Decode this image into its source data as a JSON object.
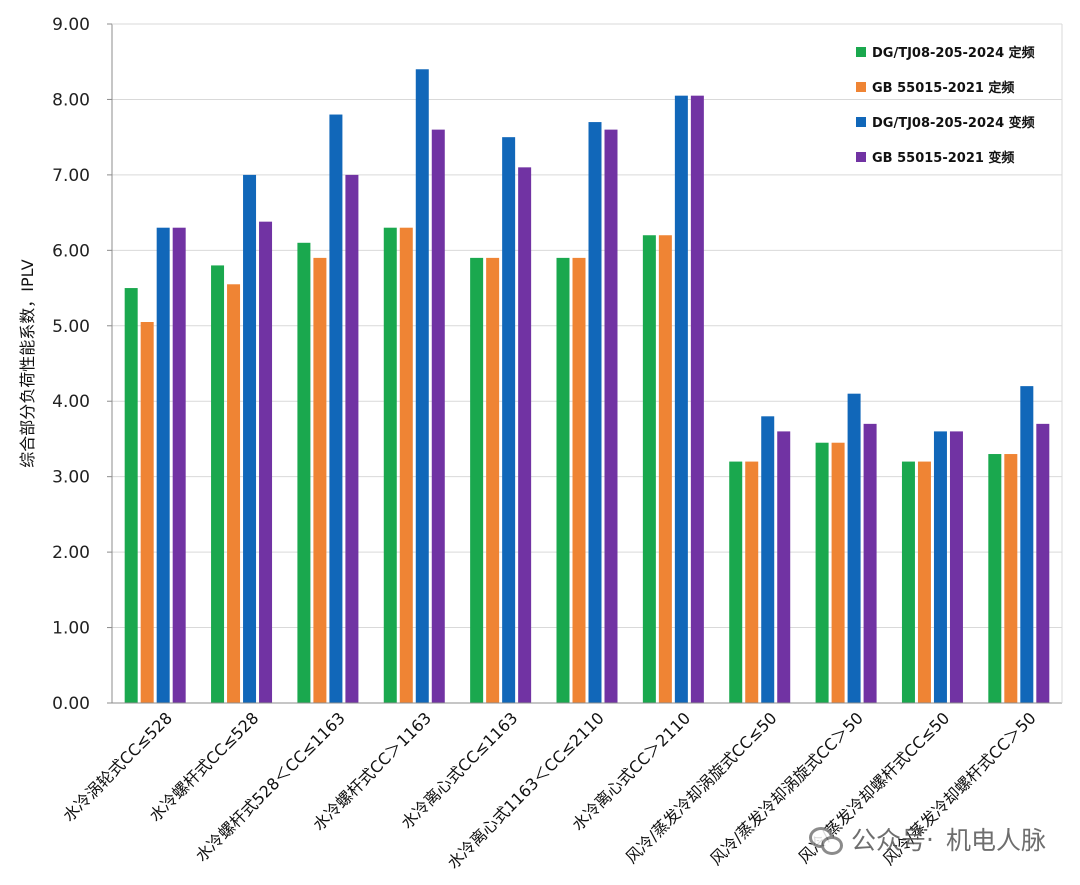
{
  "chart_data": {
    "type": "bar",
    "title": "",
    "xlabel": "",
    "ylabel": "综合部分负荷性能系数，IPLV",
    "ylim": [
      0,
      9
    ],
    "yticks": [
      "0.00",
      "1.00",
      "2.00",
      "3.00",
      "4.00",
      "5.00",
      "6.00",
      "7.00",
      "8.00",
      "9.00"
    ],
    "grid": true,
    "legend_position": "top-right",
    "categories": [
      "水冷涡轮式CC≤528",
      "水冷螺杆式CC≤528",
      "水冷螺杆式528＜CC≤1163",
      "水冷螺杆式CC＞1163",
      "水冷离心式CC≤1163",
      "水冷离心式1163＜CC≤2110",
      "水冷离心式CC＞2110",
      "风冷/蒸发冷却涡旋式CC≤50",
      "风冷/蒸发冷却涡旋式CC＞50",
      "风冷/蒸发冷却螺杆式CC≤50",
      "风冷/蒸发冷却螺杆式CC＞50"
    ],
    "series": [
      {
        "name": "DG/TJ08-205-2024 定频",
        "color": "#1aa84e",
        "values": [
          5.5,
          5.8,
          6.1,
          6.3,
          5.9,
          5.9,
          6.2,
          3.2,
          3.45,
          3.2,
          3.3
        ]
      },
      {
        "name": "GB 55015-2021 定频",
        "color": "#ef8434",
        "values": [
          5.05,
          5.55,
          5.9,
          6.3,
          5.9,
          5.9,
          6.2,
          3.2,
          3.45,
          3.2,
          3.3
        ]
      },
      {
        "name": "DG/TJ08-205-2024 变频",
        "color": "#1167b9",
        "values": [
          6.3,
          7.0,
          7.8,
          8.4,
          7.5,
          7.7,
          8.05,
          3.8,
          4.1,
          3.6,
          4.2
        ]
      },
      {
        "name": "GB 55015-2021 变频",
        "color": "#7133a3",
        "values": [
          6.3,
          6.38,
          7.0,
          7.6,
          7.1,
          7.6,
          8.05,
          3.6,
          3.7,
          3.6,
          3.7
        ]
      }
    ]
  },
  "watermark": {
    "icon": "wechat-icon",
    "left": "公众号",
    "sep": "·",
    "right": "机电人脉"
  }
}
